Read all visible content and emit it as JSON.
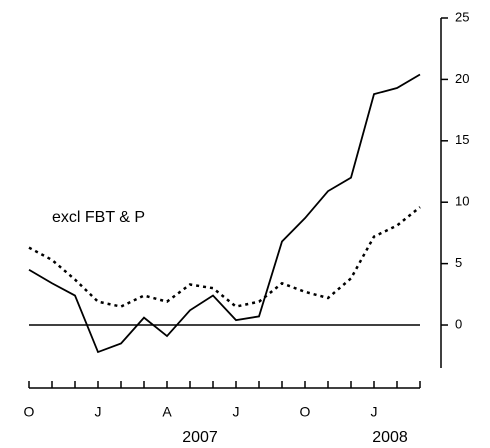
{
  "chart_data": {
    "type": "line",
    "categories": [
      "O",
      null,
      null,
      "J",
      null,
      null,
      "A",
      null,
      null,
      "J",
      null,
      null,
      "O",
      null,
      null,
      "J",
      null,
      null
    ],
    "x_group_labels": [
      "2007",
      "2008"
    ],
    "annotation": "excl FBT & P",
    "series": [
      {
        "color": "#000000",
        "style": "solid",
        "values": [
          4.5,
          3.4,
          2.4,
          -2.2,
          -1.5,
          0.6,
          -0.9,
          1.2,
          2.4,
          0.4,
          0.7,
          6.8,
          8.7,
          10.9,
          12.0,
          18.8,
          19.3,
          20.4
        ]
      },
      {
        "color": "#000000",
        "style": "dotted",
        "values": [
          6.3,
          5.3,
          3.7,
          1.9,
          1.5,
          2.4,
          1.9,
          3.3,
          3.0,
          1.5,
          1.9,
          3.4,
          2.7,
          2.2,
          3.8,
          7.2,
          8.1,
          9.6
        ]
      }
    ],
    "ylim": [
      -3.5,
      25
    ],
    "yticks": [
      0,
      5,
      10,
      15,
      20,
      25
    ],
    "y_axis_side": "right",
    "zero_line": true
  }
}
